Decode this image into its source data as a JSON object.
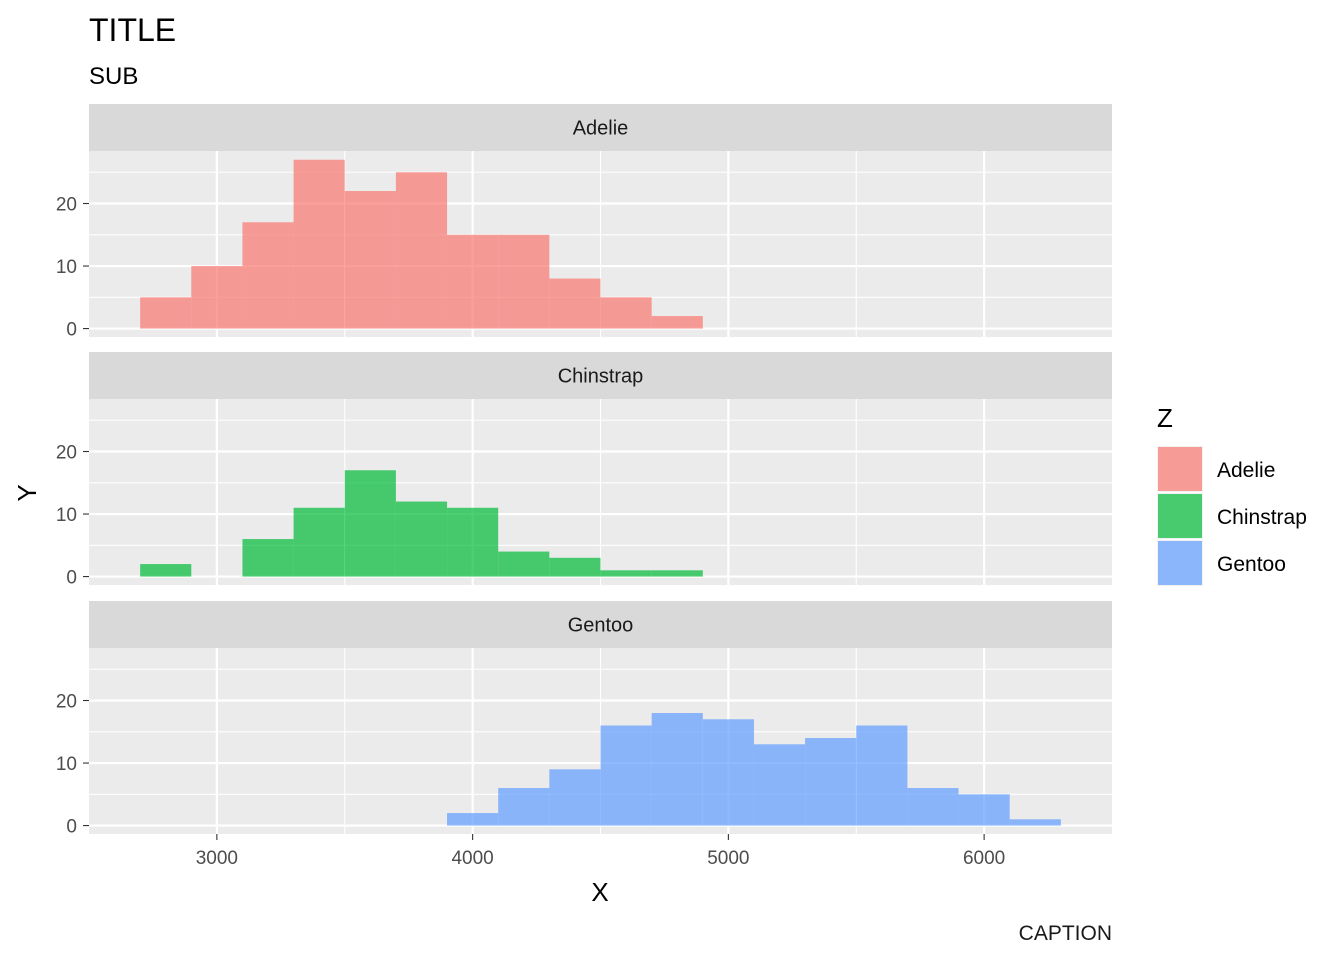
{
  "title": "TITLE",
  "subtitle": "SUB",
  "caption": "CAPTION",
  "legend": {
    "title": "Z",
    "items": [
      {
        "label": "Adelie",
        "color": "#F8766D"
      },
      {
        "label": "Chinstrap",
        "color": "#00BA38"
      },
      {
        "label": "Gentoo",
        "color": "#619CFF"
      }
    ]
  },
  "chart_data": {
    "type": "bar",
    "subtype": "faceted-histogram",
    "xlabel": "X",
    "ylabel": "Y",
    "xlim": [
      2500,
      6500
    ],
    "ylim": [
      -1.35,
      28.4
    ],
    "x_ticks": [
      3000,
      4000,
      5000,
      6000
    ],
    "x_tick_labels": [
      "3000",
      "4000",
      "5000",
      "6000"
    ],
    "y_ticks": [
      0,
      10,
      20
    ],
    "y_tick_labels": [
      "0",
      "10",
      "20"
    ],
    "bin_width": 200,
    "grid": true,
    "legend_position": "right",
    "facets": [
      {
        "name": "Adelie",
        "color": "#F8766D",
        "bins": [
          {
            "x0": 2700,
            "x1": 2900,
            "count": 5
          },
          {
            "x0": 2900,
            "x1": 3100,
            "count": 10
          },
          {
            "x0": 3100,
            "x1": 3300,
            "count": 17
          },
          {
            "x0": 3300,
            "x1": 3500,
            "count": 27
          },
          {
            "x0": 3500,
            "x1": 3700,
            "count": 22
          },
          {
            "x0": 3700,
            "x1": 3900,
            "count": 25
          },
          {
            "x0": 3900,
            "x1": 4100,
            "count": 15
          },
          {
            "x0": 4100,
            "x1": 4300,
            "count": 15
          },
          {
            "x0": 4300,
            "x1": 4500,
            "count": 8
          },
          {
            "x0": 4500,
            "x1": 4700,
            "count": 5
          },
          {
            "x0": 4700,
            "x1": 4900,
            "count": 2
          }
        ]
      },
      {
        "name": "Chinstrap",
        "color": "#00BA38",
        "bins": [
          {
            "x0": 2700,
            "x1": 2900,
            "count": 2
          },
          {
            "x0": 3100,
            "x1": 3300,
            "count": 6
          },
          {
            "x0": 3300,
            "x1": 3500,
            "count": 11
          },
          {
            "x0": 3500,
            "x1": 3700,
            "count": 17
          },
          {
            "x0": 3700,
            "x1": 3900,
            "count": 12
          },
          {
            "x0": 3900,
            "x1": 4100,
            "count": 11
          },
          {
            "x0": 4100,
            "x1": 4300,
            "count": 4
          },
          {
            "x0": 4300,
            "x1": 4500,
            "count": 3
          },
          {
            "x0": 4500,
            "x1": 4700,
            "count": 1
          },
          {
            "x0": 4700,
            "x1": 4900,
            "count": 1
          }
        ]
      },
      {
        "name": "Gentoo",
        "color": "#619CFF",
        "bins": [
          {
            "x0": 3900,
            "x1": 4100,
            "count": 2
          },
          {
            "x0": 4100,
            "x1": 4300,
            "count": 6
          },
          {
            "x0": 4300,
            "x1": 4500,
            "count": 9
          },
          {
            "x0": 4500,
            "x1": 4700,
            "count": 16
          },
          {
            "x0": 4700,
            "x1": 4900,
            "count": 18
          },
          {
            "x0": 4900,
            "x1": 5100,
            "count": 17
          },
          {
            "x0": 5100,
            "x1": 5300,
            "count": 13
          },
          {
            "x0": 5300,
            "x1": 5500,
            "count": 14
          },
          {
            "x0": 5500,
            "x1": 5700,
            "count": 16
          },
          {
            "x0": 5700,
            "x1": 5900,
            "count": 6
          },
          {
            "x0": 5900,
            "x1": 6100,
            "count": 5
          },
          {
            "x0": 6100,
            "x1": 6300,
            "count": 1
          }
        ]
      }
    ]
  }
}
